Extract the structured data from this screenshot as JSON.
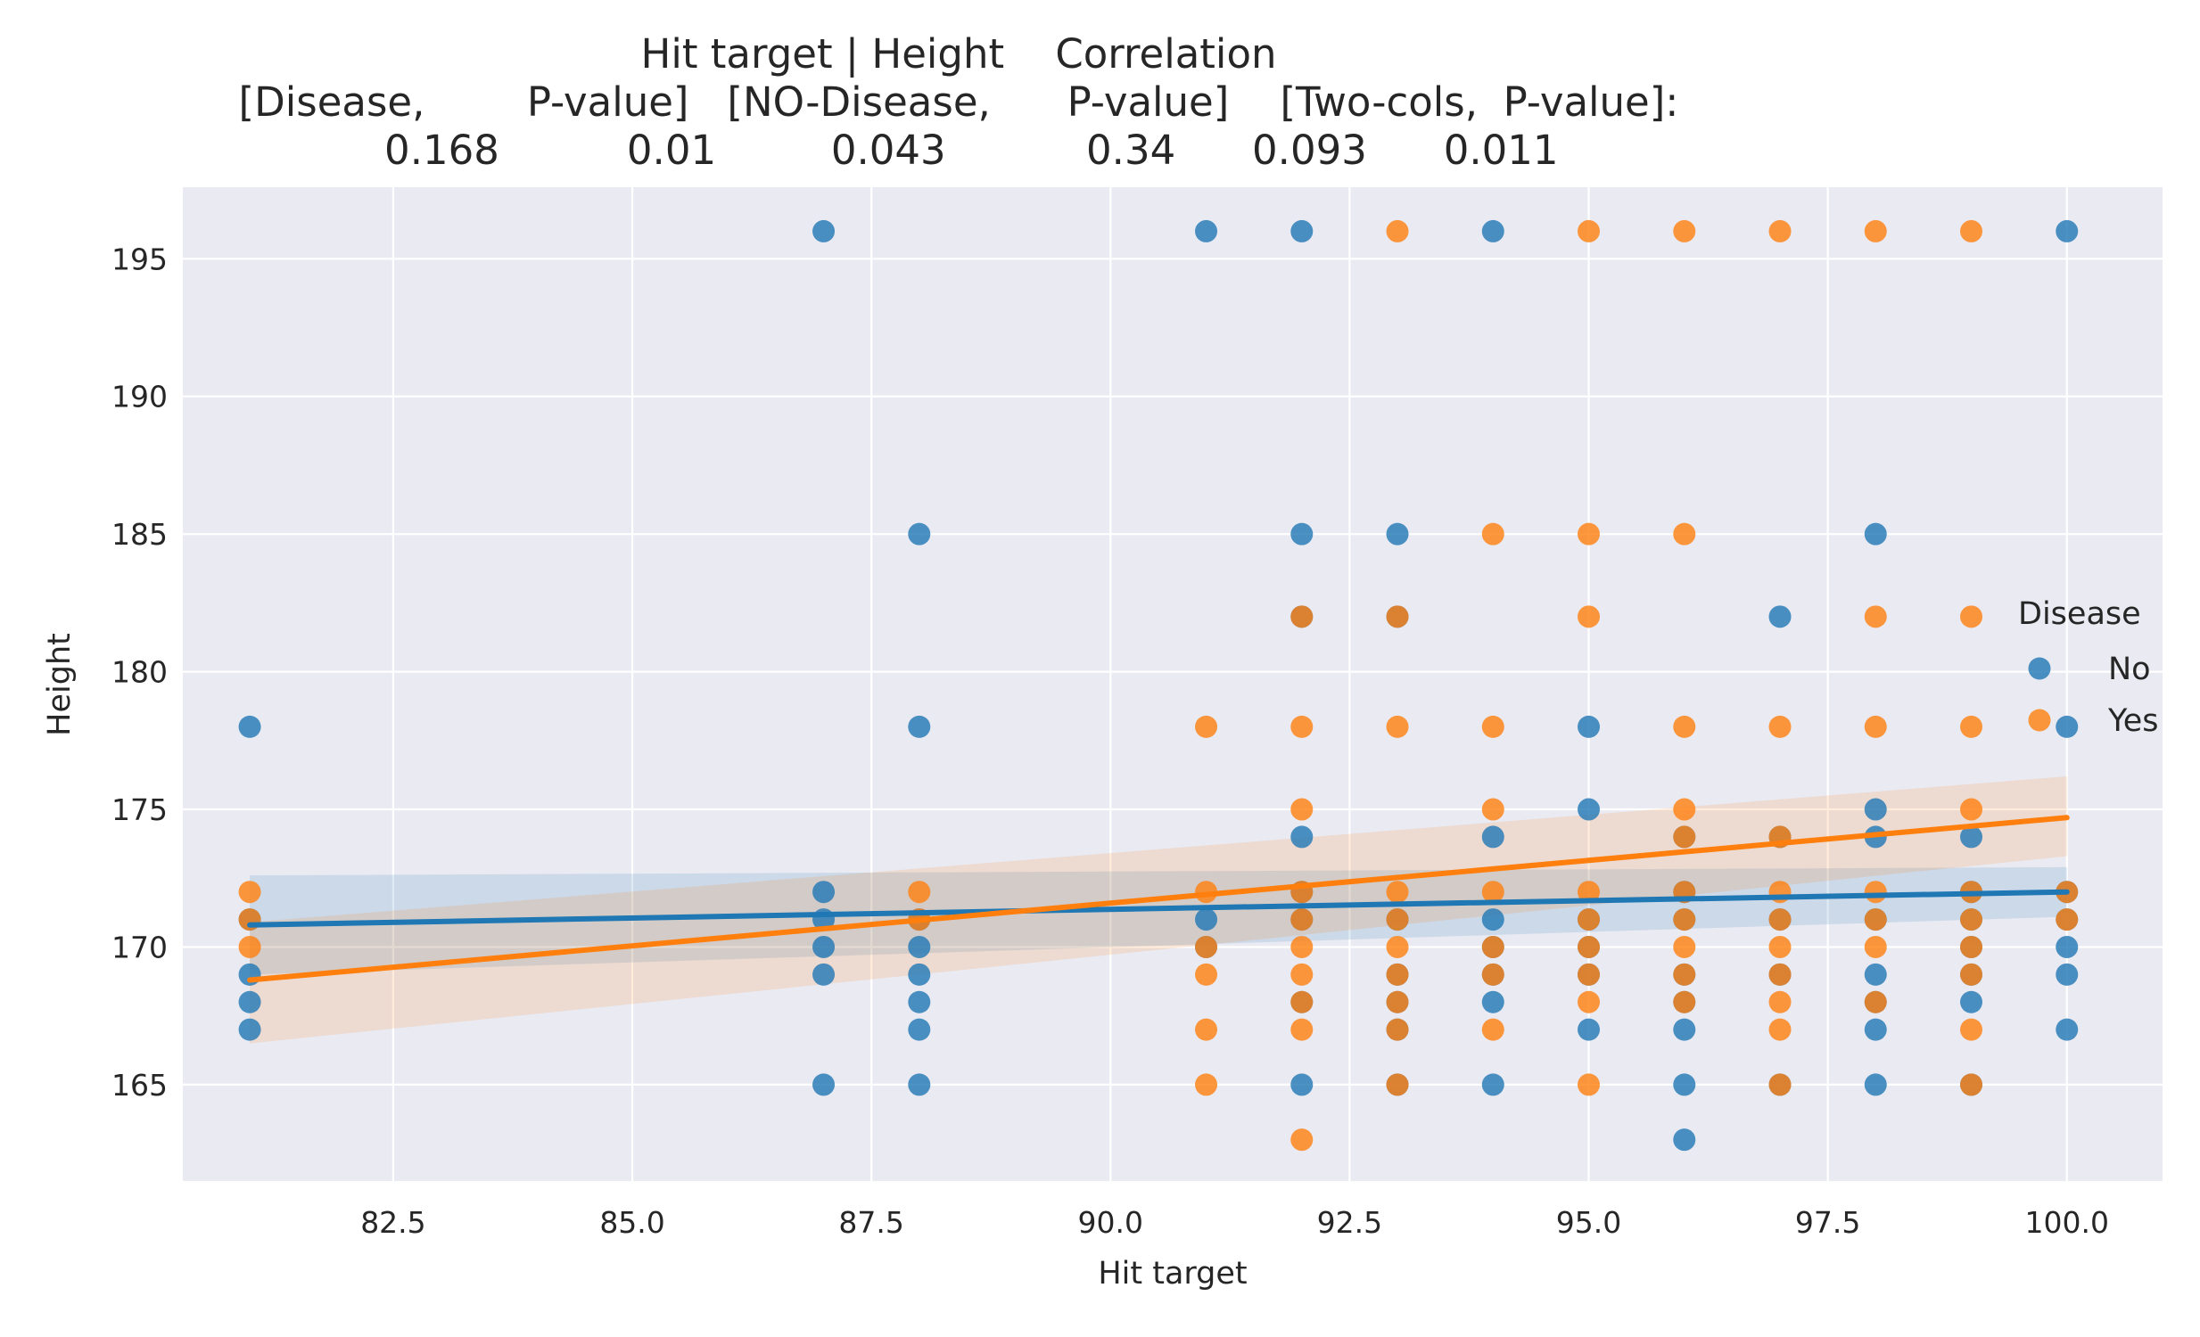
{
  "title_lines": [
    "Hit target | Height    Correlation",
    "[Disease,        P-value]   [NO-Disease,      P-value]    [Two-cols,  P-value]:",
    "  0.168          0.01         0.043           0.34      0.093      0.011"
  ],
  "chart_data": {
    "type": "scatter",
    "title": "Hit target | Height    Correlation\n[Disease,        P-value]   [NO-Disease,      P-value]    [Two-cols,  P-value]:\n  0.168          0.01         0.043           0.34      0.093      0.011",
    "xlabel": "Hit target",
    "ylabel": "Height",
    "xlim": [
      80.3,
      101.0
    ],
    "ylim": [
      161.5,
      197.6
    ],
    "xticks": [
      82.5,
      85.0,
      87.5,
      90.0,
      92.5,
      95.0,
      97.5,
      100.0
    ],
    "xtick_labels": [
      "82.5",
      "85.0",
      "87.5",
      "90.0",
      "92.5",
      "95.0",
      "97.5",
      "100.0"
    ],
    "yticks": [
      165,
      170,
      175,
      180,
      185,
      190,
      195
    ],
    "ytick_labels": [
      "165",
      "170",
      "175",
      "180",
      "185",
      "190",
      "195"
    ],
    "grid": true,
    "legend": {
      "title": "Disease",
      "placement": "right",
      "entries": [
        "No",
        "Yes"
      ]
    },
    "series": [
      {
        "name": "No",
        "color": "#1f77b4",
        "points": [
          [
            81,
            178
          ],
          [
            81,
            171
          ],
          [
            81,
            169
          ],
          [
            81,
            168
          ],
          [
            81,
            167
          ],
          [
            87,
            196
          ],
          [
            87,
            172
          ],
          [
            87,
            171
          ],
          [
            87,
            170
          ],
          [
            87,
            169
          ],
          [
            87,
            165
          ],
          [
            88,
            185
          ],
          [
            88,
            178
          ],
          [
            88,
            171
          ],
          [
            88,
            170
          ],
          [
            88,
            169
          ],
          [
            88,
            168
          ],
          [
            88,
            167
          ],
          [
            88,
            165
          ],
          [
            91,
            196
          ],
          [
            91,
            171
          ],
          [
            91,
            170
          ],
          [
            92,
            196
          ],
          [
            92,
            185
          ],
          [
            92,
            182
          ],
          [
            92,
            174
          ],
          [
            92,
            172
          ],
          [
            92,
            171
          ],
          [
            92,
            168
          ],
          [
            92,
            165
          ],
          [
            93,
            185
          ],
          [
            93,
            182
          ],
          [
            93,
            171
          ],
          [
            93,
            169
          ],
          [
            93,
            168
          ],
          [
            93,
            167
          ],
          [
            93,
            165
          ],
          [
            94,
            196
          ],
          [
            94,
            174
          ],
          [
            94,
            171
          ],
          [
            94,
            170
          ],
          [
            94,
            169
          ],
          [
            94,
            168
          ],
          [
            94,
            165
          ],
          [
            95,
            178
          ],
          [
            95,
            175
          ],
          [
            95,
            171
          ],
          [
            95,
            170
          ],
          [
            95,
            169
          ],
          [
            95,
            167
          ],
          [
            96,
            174
          ],
          [
            96,
            172
          ],
          [
            96,
            171
          ],
          [
            96,
            169
          ],
          [
            96,
            168
          ],
          [
            96,
            167
          ],
          [
            96,
            165
          ],
          [
            96,
            163
          ],
          [
            97,
            182
          ],
          [
            97,
            174
          ],
          [
            97,
            171
          ],
          [
            97,
            169
          ],
          [
            97,
            165
          ],
          [
            98,
            185
          ],
          [
            98,
            175
          ],
          [
            98,
            174
          ],
          [
            98,
            171
          ],
          [
            98,
            169
          ],
          [
            98,
            168
          ],
          [
            98,
            167
          ],
          [
            98,
            165
          ],
          [
            99,
            174
          ],
          [
            99,
            172
          ],
          [
            99,
            171
          ],
          [
            99,
            170
          ],
          [
            99,
            169
          ],
          [
            99,
            168
          ],
          [
            99,
            165
          ],
          [
            100,
            196
          ],
          [
            100,
            178
          ],
          [
            100,
            172
          ],
          [
            100,
            171
          ],
          [
            100,
            170
          ],
          [
            100,
            169
          ],
          [
            100,
            167
          ]
        ],
        "regression": {
          "x": [
            81,
            100
          ],
          "y": [
            170.8,
            172.0
          ],
          "ci_low": [
            169.0,
            171.1
          ],
          "ci_high": [
            172.6,
            172.9
          ]
        }
      },
      {
        "name": "Yes",
        "color": "#ff7f0e",
        "points": [
          [
            81,
            172
          ],
          [
            81,
            171
          ],
          [
            81,
            170
          ],
          [
            88,
            172
          ],
          [
            88,
            171
          ],
          [
            91,
            178
          ],
          [
            91,
            172
          ],
          [
            91,
            170
          ],
          [
            91,
            169
          ],
          [
            91,
            167
          ],
          [
            91,
            165
          ],
          [
            92,
            182
          ],
          [
            92,
            178
          ],
          [
            92,
            175
          ],
          [
            92,
            172
          ],
          [
            92,
            171
          ],
          [
            92,
            170
          ],
          [
            92,
            169
          ],
          [
            92,
            168
          ],
          [
            92,
            167
          ],
          [
            92,
            163
          ],
          [
            93,
            196
          ],
          [
            93,
            182
          ],
          [
            93,
            178
          ],
          [
            93,
            172
          ],
          [
            93,
            171
          ],
          [
            93,
            170
          ],
          [
            93,
            169
          ],
          [
            93,
            168
          ],
          [
            93,
            167
          ],
          [
            93,
            165
          ],
          [
            94,
            185
          ],
          [
            94,
            178
          ],
          [
            94,
            175
          ],
          [
            94,
            172
          ],
          [
            94,
            170
          ],
          [
            94,
            169
          ],
          [
            94,
            167
          ],
          [
            95,
            196
          ],
          [
            95,
            185
          ],
          [
            95,
            182
          ],
          [
            95,
            172
          ],
          [
            95,
            171
          ],
          [
            95,
            170
          ],
          [
            95,
            169
          ],
          [
            95,
            168
          ],
          [
            95,
            165
          ],
          [
            96,
            196
          ],
          [
            96,
            185
          ],
          [
            96,
            178
          ],
          [
            96,
            175
          ],
          [
            96,
            174
          ],
          [
            96,
            172
          ],
          [
            96,
            171
          ],
          [
            96,
            170
          ],
          [
            96,
            169
          ],
          [
            96,
            168
          ],
          [
            97,
            196
          ],
          [
            97,
            178
          ],
          [
            97,
            174
          ],
          [
            97,
            172
          ],
          [
            97,
            171
          ],
          [
            97,
            170
          ],
          [
            97,
            169
          ],
          [
            97,
            168
          ],
          [
            97,
            167
          ],
          [
            97,
            165
          ],
          [
            98,
            196
          ],
          [
            98,
            182
          ],
          [
            98,
            178
          ],
          [
            98,
            172
          ],
          [
            98,
            171
          ],
          [
            98,
            170
          ],
          [
            98,
            168
          ],
          [
            99,
            196
          ],
          [
            99,
            182
          ],
          [
            99,
            178
          ],
          [
            99,
            175
          ],
          [
            99,
            172
          ],
          [
            99,
            171
          ],
          [
            99,
            170
          ],
          [
            99,
            169
          ],
          [
            99,
            167
          ],
          [
            99,
            165
          ],
          [
            100,
            172
          ],
          [
            100,
            171
          ]
        ],
        "regression": {
          "x": [
            81,
            100
          ],
          "y": [
            168.8,
            174.7
          ],
          "ci_low": [
            166.5,
            173.3
          ],
          "ci_high": [
            170.9,
            176.2
          ]
        }
      }
    ]
  }
}
